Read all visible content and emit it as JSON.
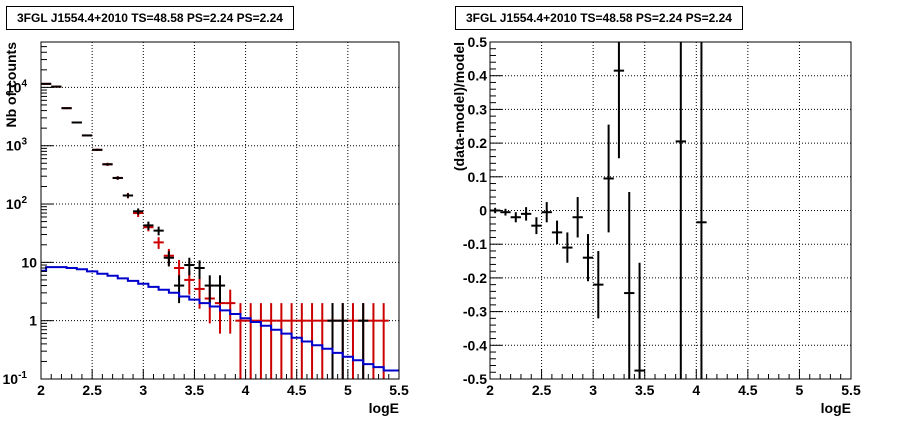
{
  "chart_data": [
    {
      "type": "scatter",
      "title": "3FGL J1554.4+2010 TS=48.58 PS=2.24 PS=2.24",
      "xlabel": "logE",
      "ylabel": "Nb of counts",
      "xlim": [
        2,
        5.5
      ],
      "ylim": [
        0.1,
        60000
      ],
      "yscale": "log",
      "grid": true,
      "xticks": [
        "2",
        "2.5",
        "3",
        "3.5",
        "4",
        "4.5",
        "5",
        "5.5"
      ],
      "yticks": [
        "10^-1",
        "1",
        "10",
        "10^2",
        "10^3",
        "10^4"
      ],
      "series": [
        {
          "color": "#cc0000",
          "style": "errorbar",
          "points": [
            {
              "x": 2.05,
              "y": 11500,
              "err": 150
            },
            {
              "x": 2.15,
              "y": 10300,
              "err": 150
            },
            {
              "x": 2.25,
              "y": 4400,
              "err": 100
            },
            {
              "x": 2.35,
              "y": 2500,
              "err": 70
            },
            {
              "x": 2.45,
              "y": 1500,
              "err": 50
            },
            {
              "x": 2.55,
              "y": 850,
              "err": 40
            },
            {
              "x": 2.65,
              "y": 480,
              "err": 30
            },
            {
              "x": 2.75,
              "y": 280,
              "err": 20
            },
            {
              "x": 2.85,
              "y": 140,
              "err": 15
            },
            {
              "x": 2.95,
              "y": 70,
              "err": 10
            },
            {
              "x": 3.05,
              "y": 40,
              "err": 6
            },
            {
              "x": 3.15,
              "y": 22,
              "err": 5
            },
            {
              "x": 3.25,
              "y": 13,
              "err": 4
            },
            {
              "x": 3.35,
              "y": 8,
              "err": 3
            },
            {
              "x": 3.45,
              "y": 5,
              "err": 2.2
            },
            {
              "x": 3.55,
              "y": 3.5,
              "err": 1.9
            },
            {
              "x": 3.65,
              "y": 2.4,
              "err": 1.5
            },
            {
              "x": 3.75,
              "y": 2,
              "err": 1.4
            },
            {
              "x": 3.85,
              "y": 2,
              "err": 1.4
            },
            {
              "x": 3.95,
              "y": 1,
              "err": 1
            },
            {
              "x": 4.05,
              "y": 1,
              "err": 1
            },
            {
              "x": 4.15,
              "y": 1,
              "err": 1
            },
            {
              "x": 4.25,
              "y": 1,
              "err": 1
            },
            {
              "x": 4.35,
              "y": 1,
              "err": 1
            },
            {
              "x": 4.45,
              "y": 1,
              "err": 1
            },
            {
              "x": 4.55,
              "y": 1,
              "err": 1
            },
            {
              "x": 4.65,
              "y": 1,
              "err": 1
            },
            {
              "x": 4.75,
              "y": 1,
              "err": 1
            },
            {
              "x": 4.85,
              "y": 1,
              "err": 1
            },
            {
              "x": 4.95,
              "y": 1,
              "err": 1
            },
            {
              "x": 5.05,
              "y": 1,
              "err": 1
            },
            {
              "x": 5.15,
              "y": 1,
              "err": 1
            },
            {
              "x": 5.25,
              "y": 1,
              "err": 1
            },
            {
              "x": 5.35,
              "y": 1,
              "err": 1
            }
          ]
        },
        {
          "color": "#000000",
          "style": "errorbar",
          "points": [
            {
              "x": 2.05,
              "y": 11500,
              "err": 100
            },
            {
              "x": 2.15,
              "y": 10300,
              "err": 100
            },
            {
              "x": 2.25,
              "y": 4400,
              "err": 70
            },
            {
              "x": 2.35,
              "y": 2500,
              "err": 50
            },
            {
              "x": 2.45,
              "y": 1500,
              "err": 40
            },
            {
              "x": 2.55,
              "y": 850,
              "err": 30
            },
            {
              "x": 2.65,
              "y": 480,
              "err": 22
            },
            {
              "x": 2.75,
              "y": 280,
              "err": 17
            },
            {
              "x": 2.85,
              "y": 140,
              "err": 12
            },
            {
              "x": 2.95,
              "y": 75,
              "err": 9
            },
            {
              "x": 3.05,
              "y": 43,
              "err": 7
            },
            {
              "x": 3.15,
              "y": 35,
              "err": 6
            },
            {
              "x": 3.25,
              "y": 12,
              "err": 3.5
            },
            {
              "x": 3.35,
              "y": 4,
              "err": 2
            },
            {
              "x": 3.45,
              "y": 9,
              "err": 3
            },
            {
              "x": 3.55,
              "y": 8,
              "err": 2.8
            },
            {
              "x": 3.65,
              "y": 4,
              "err": 2
            },
            {
              "x": 3.75,
              "y": 4,
              "err": 2
            },
            {
              "x": 4.85,
              "y": 1,
              "err": 1
            },
            {
              "x": 4.95,
              "y": 1,
              "err": 1
            },
            {
              "x": 5.15,
              "y": 1,
              "err": 1
            }
          ]
        },
        {
          "color": "#0000cc",
          "style": "step",
          "edges": [
            2.0,
            2.05,
            2.15,
            2.25,
            2.35,
            2.45,
            2.55,
            2.65,
            2.75,
            2.85,
            2.95,
            3.05,
            3.15,
            3.25,
            3.35,
            3.45,
            3.55,
            3.65,
            3.75,
            3.85,
            3.95,
            4.05,
            4.15,
            4.25,
            4.35,
            4.45,
            4.55,
            4.65,
            4.75,
            4.85,
            4.95,
            5.05,
            5.15,
            5.25,
            5.35,
            5.5
          ],
          "values": [
            7.2,
            8.3,
            8.3,
            8.0,
            7.6,
            7.0,
            6.4,
            5.9,
            5.3,
            4.8,
            4.3,
            3.8,
            3.4,
            3.0,
            2.6,
            2.3,
            2.0,
            1.75,
            1.5,
            1.3,
            1.1,
            0.95,
            0.82,
            0.7,
            0.6,
            0.51,
            0.44,
            0.38,
            0.33,
            0.28,
            0.24,
            0.21,
            0.18,
            0.16,
            0.14
          ]
        }
      ]
    },
    {
      "type": "scatter",
      "title": "3FGL J1554.4+2010 TS=48.58 PS=2.24 PS=2.24",
      "xlabel": "logE",
      "ylabel": "(data-model)/model",
      "xlim": [
        2,
        5.5
      ],
      "ylim": [
        -0.5,
        0.5
      ],
      "grid": true,
      "xticks": [
        "2",
        "2.5",
        "3",
        "3.5",
        "4",
        "4.5",
        "5",
        "5.5"
      ],
      "yticks": [
        "-0.5",
        "-0.4",
        "-0.3",
        "-0.2",
        "-0.1",
        "0",
        "0.1",
        "0.2",
        "0.3",
        "0.4",
        "0.5"
      ],
      "series": [
        {
          "color": "#000000",
          "style": "errorbar",
          "points": [
            {
              "x": 2.05,
              "y": 0.0,
              "err": 0.008
            },
            {
              "x": 2.15,
              "y": -0.005,
              "err": 0.01
            },
            {
              "x": 2.25,
              "y": -0.02,
              "err": 0.015
            },
            {
              "x": 2.35,
              "y": -0.01,
              "err": 0.02
            },
            {
              "x": 2.45,
              "y": -0.045,
              "err": 0.025
            },
            {
              "x": 2.55,
              "y": -0.005,
              "err": 0.03
            },
            {
              "x": 2.65,
              "y": -0.065,
              "err": 0.035
            },
            {
              "x": 2.75,
              "y": -0.11,
              "err": 0.045
            },
            {
              "x": 2.85,
              "y": -0.02,
              "err": 0.06
            },
            {
              "x": 2.95,
              "y": -0.14,
              "err": 0.07
            },
            {
              "x": 3.05,
              "y": -0.22,
              "err": 0.1
            },
            {
              "x": 3.15,
              "y": 0.095,
              "err": 0.16
            },
            {
              "x": 3.25,
              "y": 0.415,
              "err": 0.26
            },
            {
              "x": 3.35,
              "y": -0.245,
              "err": 0.3
            },
            {
              "x": 3.45,
              "y": -0.475,
              "err": 0.32
            },
            {
              "x": 3.85,
              "y": 0.205,
              "err": 0.75
            },
            {
              "x": 4.05,
              "y": -0.035,
              "err": 0.9
            }
          ]
        }
      ]
    }
  ]
}
